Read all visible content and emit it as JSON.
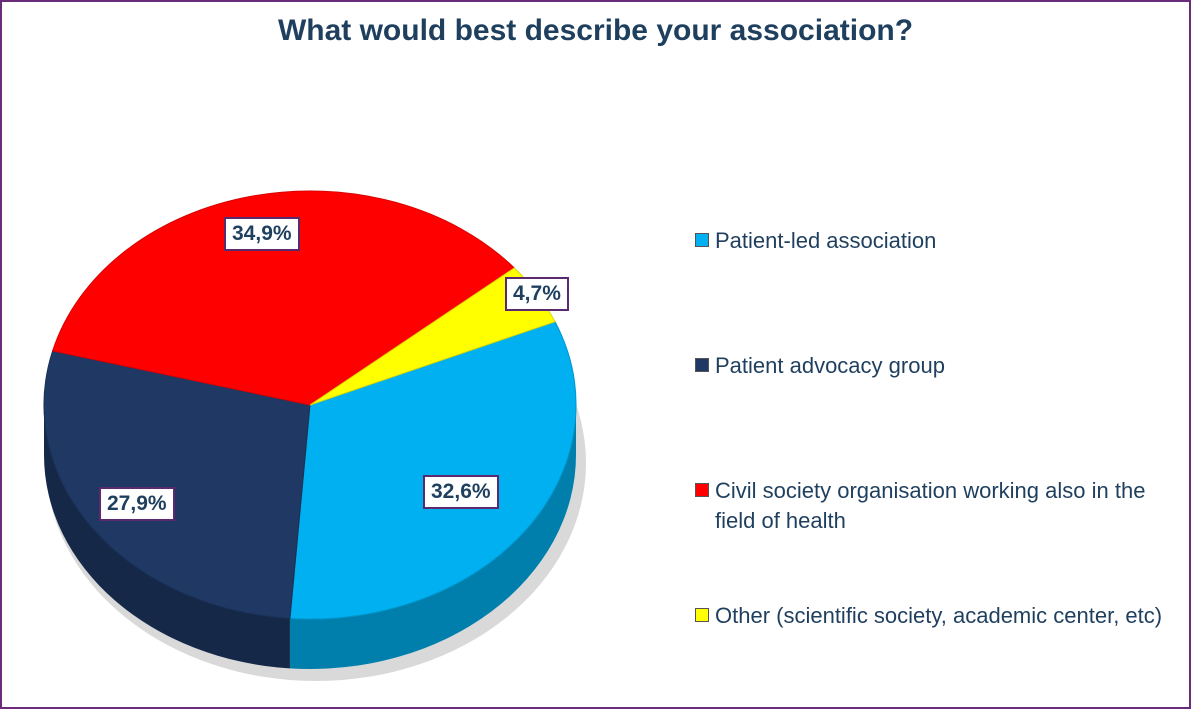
{
  "chart_data": {
    "type": "pie",
    "title": "What would best describe your association?",
    "slices": [
      {
        "name": "Patient-led association",
        "value": 32.6,
        "label": "32,6%",
        "color": "#00b0f0"
      },
      {
        "name": "Patient advocacy group",
        "value": 27.9,
        "label": "27,9%",
        "color": "#1f3864"
      },
      {
        "name": "Civil society organisation working also in the field of health",
        "value": 34.9,
        "label": "34,9%",
        "color": "#ff0000"
      },
      {
        "name": "Other (scientific society, academic center, etc)",
        "value": 4.7,
        "label": "4,7%",
        "color": "#ffff00"
      }
    ],
    "legend_placement": "right",
    "style": "3d-tilted"
  }
}
